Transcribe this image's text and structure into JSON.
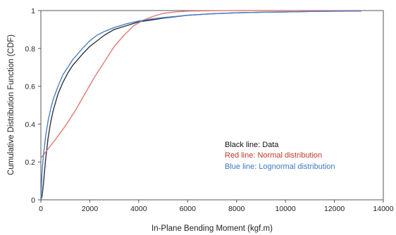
{
  "chart_data": {
    "type": "line",
    "xlabel": "In-Plane Bending Moment (kgf.m)",
    "ylabel": "Cumulative Distribution Function (CDF)",
    "xlim": [
      0,
      14000
    ],
    "ylim": [
      0,
      1
    ],
    "x_ticks": [
      0,
      2000,
      4000,
      6000,
      8000,
      10000,
      12000,
      14000
    ],
    "y_ticks": [
      0,
      0.2,
      0.4,
      0.6,
      0.8,
      1
    ],
    "x_tick_labels": [
      "0",
      "2000",
      "4000",
      "6000",
      "8000",
      "10000",
      "12000",
      "14000"
    ],
    "y_tick_labels": [
      "0",
      "0.2",
      "0.4",
      "0.6",
      "0.8",
      "1"
    ],
    "grid": false,
    "legend": "inside lower-right, text only",
    "annotations": [
      {
        "text": "Black line: Data",
        "color": "#111111"
      },
      {
        "text": "Red line: Normal distribution",
        "color": "#c0392b"
      },
      {
        "text": "Blue line: Lognormal distribution",
        "color": "#3b78c2"
      }
    ],
    "series": [
      {
        "key": "data",
        "color": "#333333",
        "x": [
          0,
          50,
          100,
          200,
          300,
          400,
          500,
          700,
          900,
          1100,
          1300,
          1500,
          1700,
          2000,
          2300,
          2600,
          3000,
          3500,
          4000,
          4500,
          5000,
          6000,
          7000,
          8000,
          9000,
          10000,
          11000,
          12000,
          13100
        ],
        "y": [
          0,
          0.02,
          0.08,
          0.22,
          0.33,
          0.41,
          0.47,
          0.56,
          0.62,
          0.67,
          0.71,
          0.74,
          0.77,
          0.81,
          0.84,
          0.87,
          0.9,
          0.92,
          0.94,
          0.95,
          0.96,
          0.975,
          0.983,
          0.988,
          0.991,
          0.993,
          0.995,
          0.997,
          0.998
        ]
      },
      {
        "key": "normal",
        "color": "#e07b74",
        "x": [
          0,
          300,
          600,
          1000,
          1400,
          1800,
          2200,
          2600,
          3000,
          3400,
          3800,
          4200,
          4600,
          5000,
          5500,
          6000,
          7000,
          8000,
          10000,
          13100
        ],
        "y": [
          0.22,
          0.27,
          0.32,
          0.39,
          0.47,
          0.56,
          0.65,
          0.73,
          0.81,
          0.87,
          0.92,
          0.95,
          0.97,
          0.985,
          0.993,
          0.997,
          0.999,
          1.0,
          1.0,
          1.0
        ]
      },
      {
        "key": "lognormal",
        "color": "#4a7fcc",
        "x": [
          0,
          50,
          100,
          200,
          300,
          400,
          500,
          700,
          900,
          1100,
          1300,
          1500,
          1700,
          2000,
          2300,
          2600,
          3000,
          3500,
          4000,
          4500,
          5000,
          6000,
          7000,
          8000,
          9000,
          10000,
          11000,
          12000,
          13100
        ],
        "y": [
          0,
          0.15,
          0.23,
          0.34,
          0.42,
          0.48,
          0.53,
          0.6,
          0.66,
          0.7,
          0.74,
          0.77,
          0.8,
          0.84,
          0.87,
          0.89,
          0.91,
          0.93,
          0.945,
          0.955,
          0.963,
          0.975,
          0.983,
          0.988,
          0.991,
          0.993,
          0.995,
          0.996,
          0.997
        ]
      }
    ]
  }
}
